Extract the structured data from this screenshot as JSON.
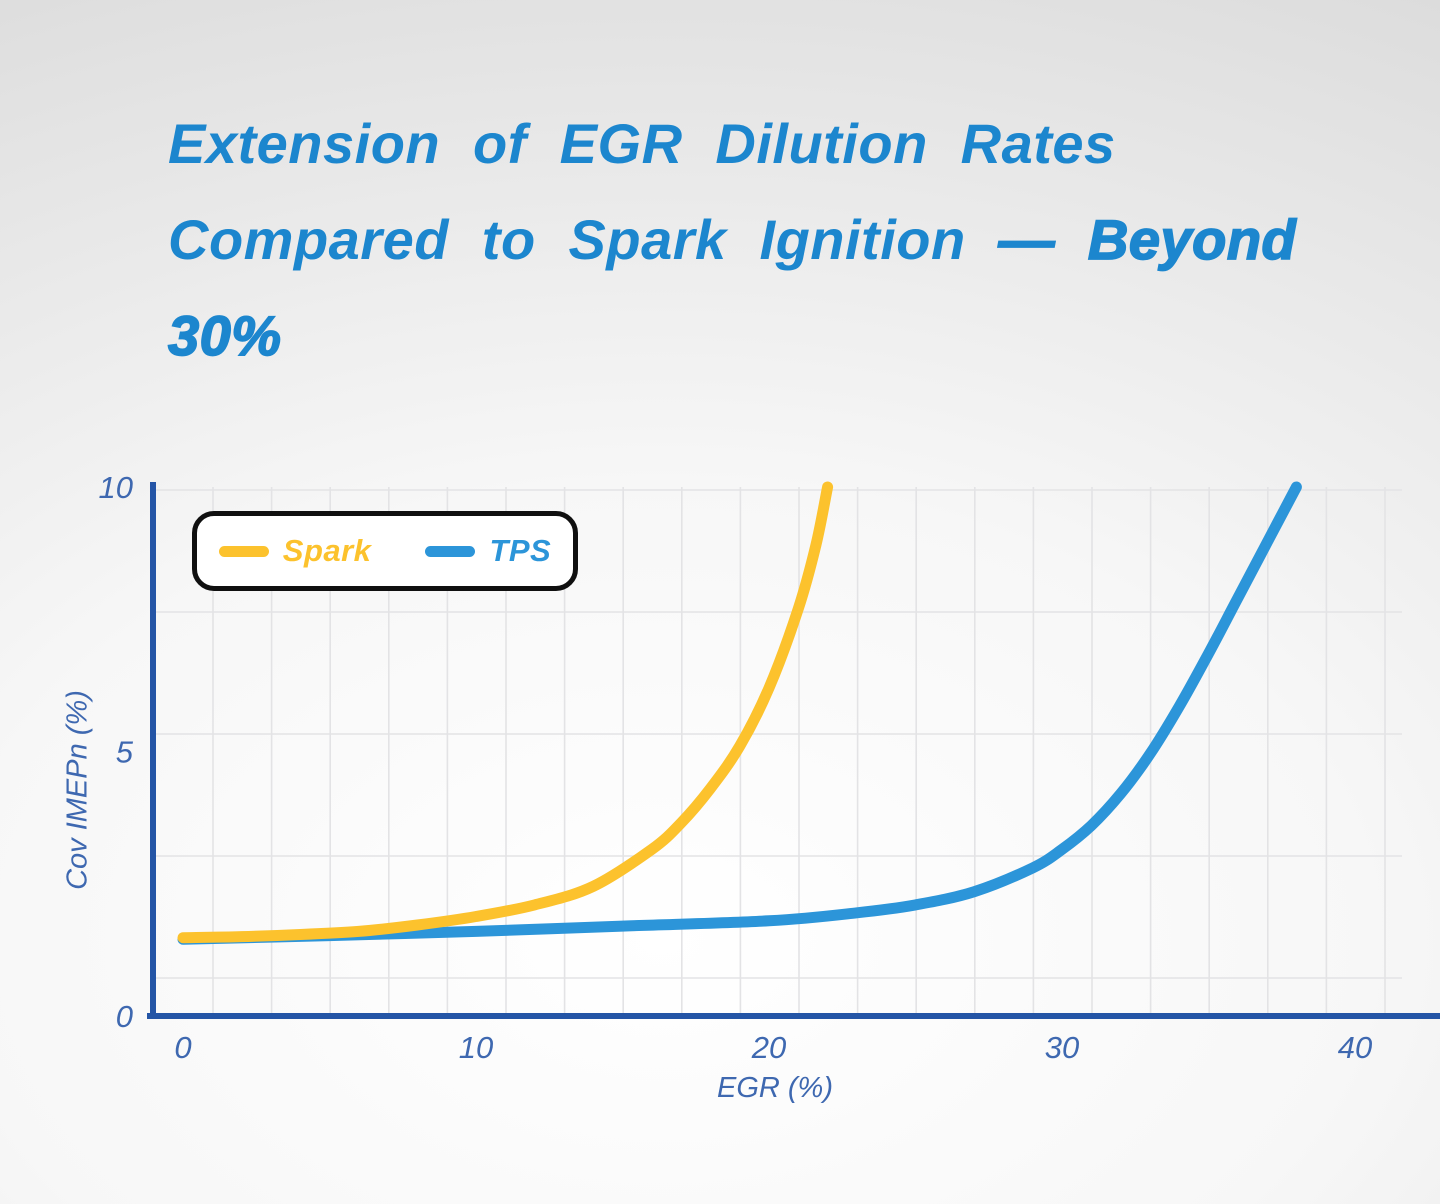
{
  "title": {
    "line1": "Extension of EGR Dilution Rates",
    "line2_regular": "Compared to Spark Ignition",
    "line2_bold": "— Beyond",
    "line3_bold": "30%"
  },
  "colors": {
    "title_blue": "#1c86ce",
    "axis_navy": "#2455a6",
    "tick_navy": "#3e68b0",
    "grid_gray": "#e3e3e5",
    "legend_border": "#101010",
    "spark_yellow": "#fcc22d",
    "tps_blue": "#2c95d9",
    "background_light": "#ffffff",
    "background_dark": "#d6d6d6"
  },
  "chart_data": {
    "type": "line",
    "title": "Extension of EGR Dilution Rates Compared to Spark Ignition — Beyond 30%",
    "xlabel": "EGR (%)",
    "ylabel": "Cov IMEPn (%)",
    "xlim": [
      0,
      40
    ],
    "ylim": [
      0,
      10
    ],
    "x_ticks": [
      0,
      10,
      20,
      30,
      40
    ],
    "y_ticks": [
      0,
      5,
      10
    ],
    "grid": true,
    "legend_position": "top-left",
    "series": [
      {
        "name": "Spark",
        "color": "#fcc22d",
        "points": [
          [
            0,
            1.48
          ],
          [
            2,
            1.5
          ],
          [
            4,
            1.54
          ],
          [
            6,
            1.6
          ],
          [
            8,
            1.72
          ],
          [
            10,
            1.88
          ],
          [
            12,
            2.1
          ],
          [
            14,
            2.45
          ],
          [
            16,
            3.15
          ],
          [
            17,
            3.65
          ],
          [
            18,
            4.3
          ],
          [
            19,
            5.1
          ],
          [
            20,
            6.2
          ],
          [
            21,
            7.7
          ],
          [
            21.6,
            8.9
          ],
          [
            22,
            10.0
          ]
        ]
      },
      {
        "name": "TPS",
        "color": "#2c95d9",
        "points": [
          [
            0,
            1.45
          ],
          [
            5,
            1.52
          ],
          [
            10,
            1.6
          ],
          [
            15,
            1.7
          ],
          [
            20,
            1.8
          ],
          [
            23,
            1.95
          ],
          [
            25,
            2.1
          ],
          [
            27,
            2.35
          ],
          [
            29,
            2.8
          ],
          [
            30,
            3.15
          ],
          [
            31,
            3.6
          ],
          [
            32,
            4.2
          ],
          [
            33,
            4.95
          ],
          [
            34,
            5.85
          ],
          [
            35,
            6.85
          ],
          [
            36,
            7.9
          ],
          [
            37,
            8.95
          ],
          [
            38,
            10.0
          ]
        ]
      }
    ]
  }
}
